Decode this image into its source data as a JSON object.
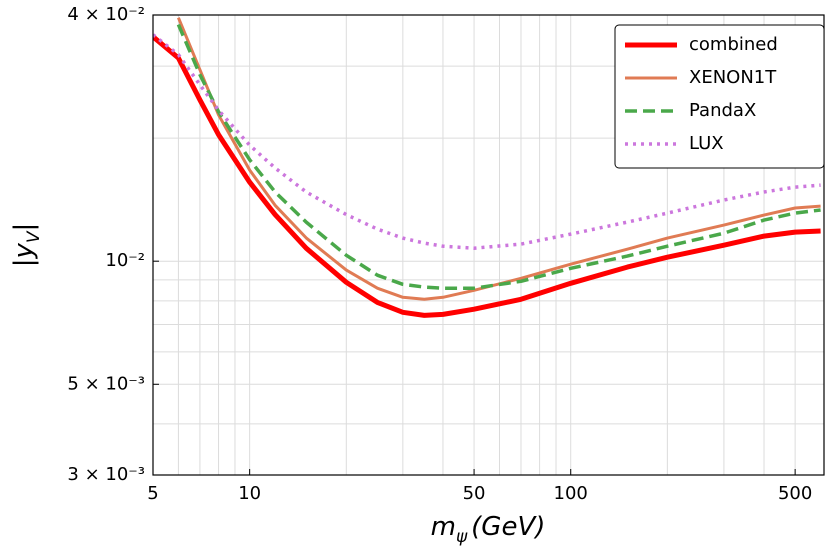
{
  "chart_data": {
    "type": "line",
    "xlabel": {
      "main": "m",
      "sub": "ψ",
      "unit": "(GeV)"
    },
    "ylabel": {
      "main": "|y",
      "sub": "V",
      "end": "|"
    },
    "xscale": "log",
    "yscale": "log",
    "grid": true,
    "legend": "upper right",
    "xlim": [
      5,
      615
    ],
    "ylim": [
      0.003,
      0.04
    ],
    "xticks": [
      5,
      10,
      50,
      100,
      500
    ],
    "xminorticks": [
      6,
      7,
      8,
      9,
      20,
      30,
      40,
      60,
      70,
      80,
      90,
      200,
      300,
      400
    ],
    "yticks": [
      {
        "value": 0.04,
        "label": "4 × 10⁻²"
      },
      {
        "value": 0.01,
        "label": "10⁻²"
      },
      {
        "value": 0.005,
        "label": "5 × 10⁻³"
      },
      {
        "value": 0.003,
        "label": "3 × 10⁻³"
      }
    ],
    "yminorticks": [
      0.004,
      0.006,
      0.007,
      0.008,
      0.009,
      0.02,
      0.03
    ],
    "x": [
      5,
      6,
      7,
      8,
      10,
      12,
      15,
      20,
      25,
      30,
      35,
      40,
      50,
      70,
      100,
      150,
      200,
      300,
      400,
      500,
      600
    ],
    "series": [
      {
        "name": "combined",
        "color": "#ff0000",
        "style": "solid",
        "width": 5,
        "values": [
          0.0354,
          0.0314,
          0.0248,
          0.0204,
          0.0156,
          0.013,
          0.01076,
          0.00888,
          0.00793,
          0.0075,
          0.00737,
          0.00741,
          0.00763,
          0.00807,
          0.00883,
          0.00967,
          0.01023,
          0.01094,
          0.01152,
          0.01178,
          0.01185
        ]
      },
      {
        "name": "XENON1T",
        "color": "#e07b54",
        "style": "solid",
        "width": 3,
        "values": [
          null,
          0.0394,
          0.0294,
          0.0228,
          0.0167,
          0.0137,
          0.0114,
          0.00951,
          0.00859,
          0.00816,
          0.00807,
          0.00816,
          0.00849,
          0.00908,
          0.00983,
          0.0107,
          0.01139,
          0.01225,
          0.01296,
          0.01349,
          0.01364
        ]
      },
      {
        "name": "PandaX",
        "color": "#4aa84a",
        "style": "dashed",
        "width": 3.5,
        "values": [
          null,
          0.0379,
          0.0286,
          0.0232,
          0.0177,
          0.01476,
          0.01246,
          0.01034,
          0.00924,
          0.00878,
          0.00864,
          0.00859,
          0.00859,
          0.00893,
          0.00961,
          0.01029,
          0.01088,
          0.01171,
          0.0126,
          0.01311,
          0.01334
        ]
      },
      {
        "name": "LUX",
        "color": "#cc77dd",
        "style": "dotted",
        "width": 3.5,
        "values": [
          0.0358,
          0.032,
          0.027,
          0.0234,
          0.0192,
          0.0169,
          0.01476,
          0.013,
          0.01198,
          0.01139,
          0.01107,
          0.01088,
          0.01076,
          0.01101,
          0.01165,
          0.01246,
          0.01311,
          0.01411,
          0.01476,
          0.01518,
          0.01535
        ]
      }
    ]
  }
}
